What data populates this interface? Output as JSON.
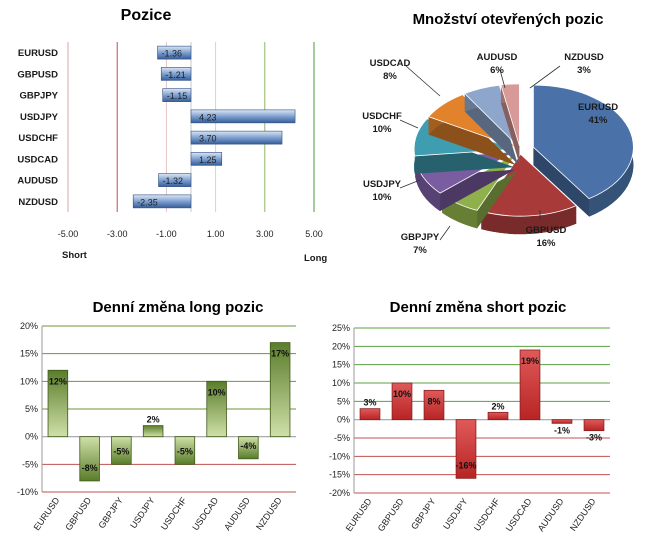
{
  "chart_data": [
    {
      "type": "bar",
      "orientation": "horizontal",
      "title": "Pozice",
      "categories": [
        "EURUSD",
        "GBPUSD",
        "GBPJPY",
        "USDJPY",
        "USDCHF",
        "USDCAD",
        "AUDUSD",
        "NZDUSD"
      ],
      "values": [
        -1.36,
        -1.21,
        -1.15,
        4.23,
        3.7,
        1.25,
        -1.32,
        -2.35
      ],
      "value_labels": [
        "-1.36",
        "-1.21",
        "-1.15",
        "4.23",
        "3.70",
        "1.25",
        "-1.32",
        "-2.35"
      ],
      "xlim": [
        -5,
        5
      ],
      "x_ticks": [
        "-5.00",
        "-3.00",
        "-1.00",
        "1.00",
        "3.00",
        "5.00"
      ],
      "x_tick_values": [
        -5,
        -3,
        -1,
        1,
        3,
        5
      ],
      "left_label": "Short",
      "right_label": "Long",
      "bar_color": "#4f79b4"
    },
    {
      "type": "pie",
      "title": "Množství otevřených pozic",
      "labels": [
        "EURUSD",
        "GBPUSD",
        "GBPJPY",
        "USDJPY",
        "USDCHF",
        "USDCAD",
        "AUDUSD",
        "NZDUSD"
      ],
      "values": [
        41,
        16,
        7,
        10,
        10,
        8,
        6,
        3
      ],
      "value_labels": [
        "41%",
        "16%",
        "7%",
        "10%",
        "10%",
        "8%",
        "6%",
        "3%"
      ],
      "colors": [
        "#4a72a8",
        "#a83a3a",
        "#8fb04a",
        "#7a5ca0",
        "#3f9db2",
        "#e2822a",
        "#8fa6cc",
        "#d89a98"
      ]
    },
    {
      "type": "bar",
      "title": "Denní změna long pozic",
      "categories": [
        "EURUSD",
        "GBPUSD",
        "GBPJPY",
        "USDJPY",
        "USDCHF",
        "USDCAD",
        "AUDUSD",
        "NZDUSD"
      ],
      "values": [
        12,
        -8,
        -5,
        2,
        -5,
        10,
        -4,
        17
      ],
      "value_labels": [
        "12%",
        "-8%",
        "-5%",
        "2%",
        "-5%",
        "10%",
        "-4%",
        "17%"
      ],
      "ylim": [
        -10,
        20
      ],
      "y_ticks": [
        "20%",
        "15%",
        "10%",
        "5%",
        "0%",
        "-5%",
        "-10%"
      ],
      "y_tick_values": [
        20,
        15,
        10,
        5,
        0,
        -5,
        -10
      ],
      "bar_color": "#6f9436"
    },
    {
      "type": "bar",
      "title": "Denní změna short pozic",
      "categories": [
        "EURUSD",
        "GBPUSD",
        "GBPJPY",
        "USDJPY",
        "USDCHF",
        "USDCAD",
        "AUDUSD",
        "NZDUSD"
      ],
      "values": [
        3,
        10,
        8,
        -16,
        2,
        19,
        -1,
        -3
      ],
      "value_labels": [
        "3%",
        "10%",
        "8%",
        "-16%",
        "2%",
        "19%",
        "-1%",
        "-3%"
      ],
      "ylim": [
        -20,
        25
      ],
      "y_ticks": [
        "25%",
        "20%",
        "15%",
        "10%",
        "5%",
        "0%",
        "-5%",
        "-10%",
        "-15%",
        "-20%"
      ],
      "y_tick_values": [
        25,
        20,
        15,
        10,
        5,
        0,
        -5,
        -10,
        -15,
        -20
      ],
      "bar_color": "#cc3333"
    }
  ]
}
